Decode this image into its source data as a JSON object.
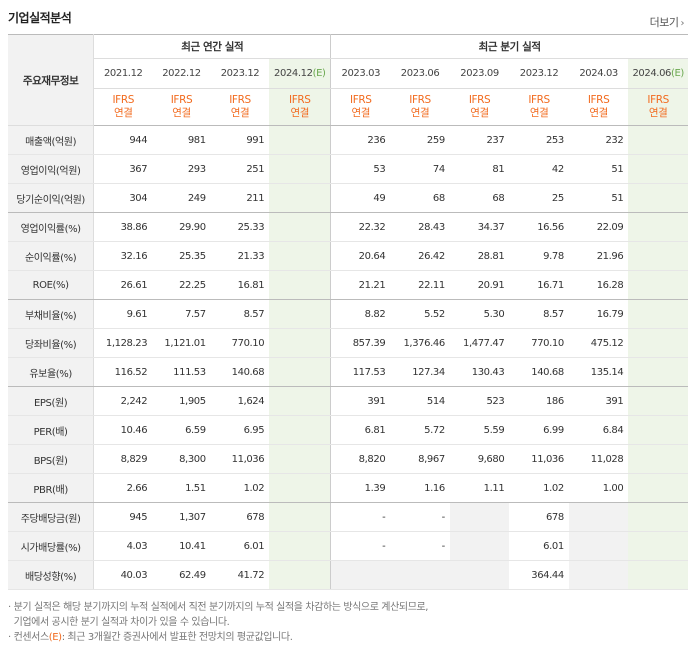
{
  "title": "기업실적분석",
  "more_label": "더보기",
  "header": {
    "label": "주요재무정보",
    "annual_group": "최근 연간 실적",
    "quarter_group": "최근 분기 실적",
    "annual_periods": [
      "2021.12",
      "2022.12",
      "2023.12",
      "2024.12"
    ],
    "quarter_periods": [
      "2023.03",
      "2023.06",
      "2023.09",
      "2023.12",
      "2024.03",
      "2024.06"
    ],
    "estimate_mark": "(E)",
    "ifrs": "IFRS",
    "consolidated": "연결"
  },
  "rows": [
    {
      "label": "매출액(억원)",
      "annual": [
        "944",
        "981",
        "991",
        ""
      ],
      "quarter": [
        "236",
        "259",
        "237",
        "253",
        "232",
        ""
      ]
    },
    {
      "label": "영업이익(억원)",
      "annual": [
        "367",
        "293",
        "251",
        ""
      ],
      "quarter": [
        "53",
        "74",
        "81",
        "42",
        "51",
        ""
      ]
    },
    {
      "label": "당기순이익(억원)",
      "annual": [
        "304",
        "249",
        "211",
        ""
      ],
      "quarter": [
        "49",
        "68",
        "68",
        "25",
        "51",
        ""
      ]
    },
    {
      "label": "영업이익률(%)",
      "annual": [
        "38.86",
        "29.90",
        "25.33",
        ""
      ],
      "quarter": [
        "22.32",
        "28.43",
        "34.37",
        "16.56",
        "22.09",
        ""
      ]
    },
    {
      "label": "순이익률(%)",
      "annual": [
        "32.16",
        "25.35",
        "21.33",
        ""
      ],
      "quarter": [
        "20.64",
        "26.42",
        "28.81",
        "9.78",
        "21.96",
        ""
      ]
    },
    {
      "label": "ROE(%)",
      "annual": [
        "26.61",
        "22.25",
        "16.81",
        ""
      ],
      "quarter": [
        "21.21",
        "22.11",
        "20.91",
        "16.71",
        "16.28",
        ""
      ]
    },
    {
      "label": "부채비율(%)",
      "annual": [
        "9.61",
        "7.57",
        "8.57",
        ""
      ],
      "quarter": [
        "8.82",
        "5.52",
        "5.30",
        "8.57",
        "16.79",
        ""
      ]
    },
    {
      "label": "당좌비율(%)",
      "annual": [
        "1,128.23",
        "1,121.01",
        "770.10",
        ""
      ],
      "quarter": [
        "857.39",
        "1,376.46",
        "1,477.47",
        "770.10",
        "475.12",
        ""
      ]
    },
    {
      "label": "유보율(%)",
      "annual": [
        "116.52",
        "111.53",
        "140.68",
        ""
      ],
      "quarter": [
        "117.53",
        "127.34",
        "130.43",
        "140.68",
        "135.14",
        ""
      ]
    },
    {
      "label": "EPS(원)",
      "annual": [
        "2,242",
        "1,905",
        "1,624",
        ""
      ],
      "quarter": [
        "391",
        "514",
        "523",
        "186",
        "391",
        ""
      ]
    },
    {
      "label": "PER(배)",
      "annual": [
        "10.46",
        "6.59",
        "6.95",
        ""
      ],
      "quarter": [
        "6.81",
        "5.72",
        "5.59",
        "6.99",
        "6.84",
        ""
      ]
    },
    {
      "label": "BPS(원)",
      "annual": [
        "8,829",
        "8,300",
        "11,036",
        ""
      ],
      "quarter": [
        "8,820",
        "8,967",
        "9,680",
        "11,036",
        "11,028",
        ""
      ]
    },
    {
      "label": "PBR(배)",
      "annual": [
        "2.66",
        "1.51",
        "1.02",
        ""
      ],
      "quarter": [
        "1.39",
        "1.16",
        "1.11",
        "1.02",
        "1.00",
        ""
      ]
    },
    {
      "label": "주당배당금(원)",
      "annual": [
        "945",
        "1,307",
        "678",
        ""
      ],
      "quarter": [
        "-",
        "-",
        "",
        "678",
        "",
        ""
      ]
    },
    {
      "label": "시가배당률(%)",
      "annual": [
        "4.03",
        "10.41",
        "6.01",
        ""
      ],
      "quarter": [
        "-",
        "-",
        "",
        "6.01",
        "",
        ""
      ]
    },
    {
      "label": "배당성향(%)",
      "annual": [
        "40.03",
        "62.49",
        "41.72",
        ""
      ],
      "quarter": [
        "",
        "",
        "",
        "364.44",
        "",
        ""
      ]
    }
  ],
  "notes": {
    "line1": "분기 실적은 해당 분기까지의 누적 실적에서 직전 분기까지의 누적 실적을 차감하는 방식으로 계산되므로,",
    "line2": "기업에서 공시한 분기 실적과 차이가 있을 수 있습니다.",
    "line3_prefix": "컨센서스",
    "line3_mark": "(E)",
    "line3_suffix": ": 최근 3개월간 증권사에서 발표한 전망치의 평균값입니다."
  }
}
